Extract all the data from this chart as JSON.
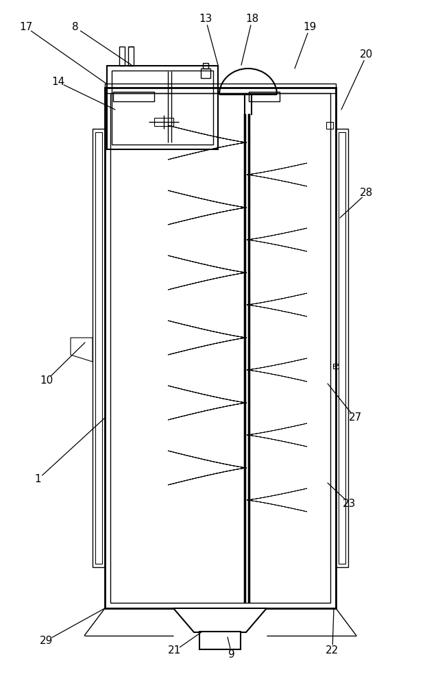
{
  "fig_width": 6.23,
  "fig_height": 10.0,
  "bg_color": "#ffffff",
  "line_color": "#000000",
  "labels_info": [
    [
      "17",
      38,
      960,
      155,
      878
    ],
    [
      "8",
      110,
      960,
      192,
      905
    ],
    [
      "13",
      300,
      972,
      318,
      905
    ],
    [
      "18",
      368,
      972,
      352,
      905
    ],
    [
      "19",
      452,
      960,
      430,
      900
    ],
    [
      "20",
      535,
      920,
      498,
      840
    ],
    [
      "14",
      85,
      880,
      168,
      840
    ],
    [
      "28",
      535,
      718,
      496,
      682
    ],
    [
      "10",
      68,
      445,
      124,
      500
    ],
    [
      "27",
      518,
      390,
      478,
      440
    ],
    [
      "23",
      510,
      265,
      478,
      295
    ],
    [
      "1",
      55,
      300,
      153,
      390
    ],
    [
      "29",
      68,
      65,
      153,
      112
    ],
    [
      "21",
      255,
      50,
      295,
      78
    ],
    [
      "9",
      338,
      45,
      332,
      70
    ],
    [
      "22",
      485,
      50,
      487,
      112
    ]
  ]
}
